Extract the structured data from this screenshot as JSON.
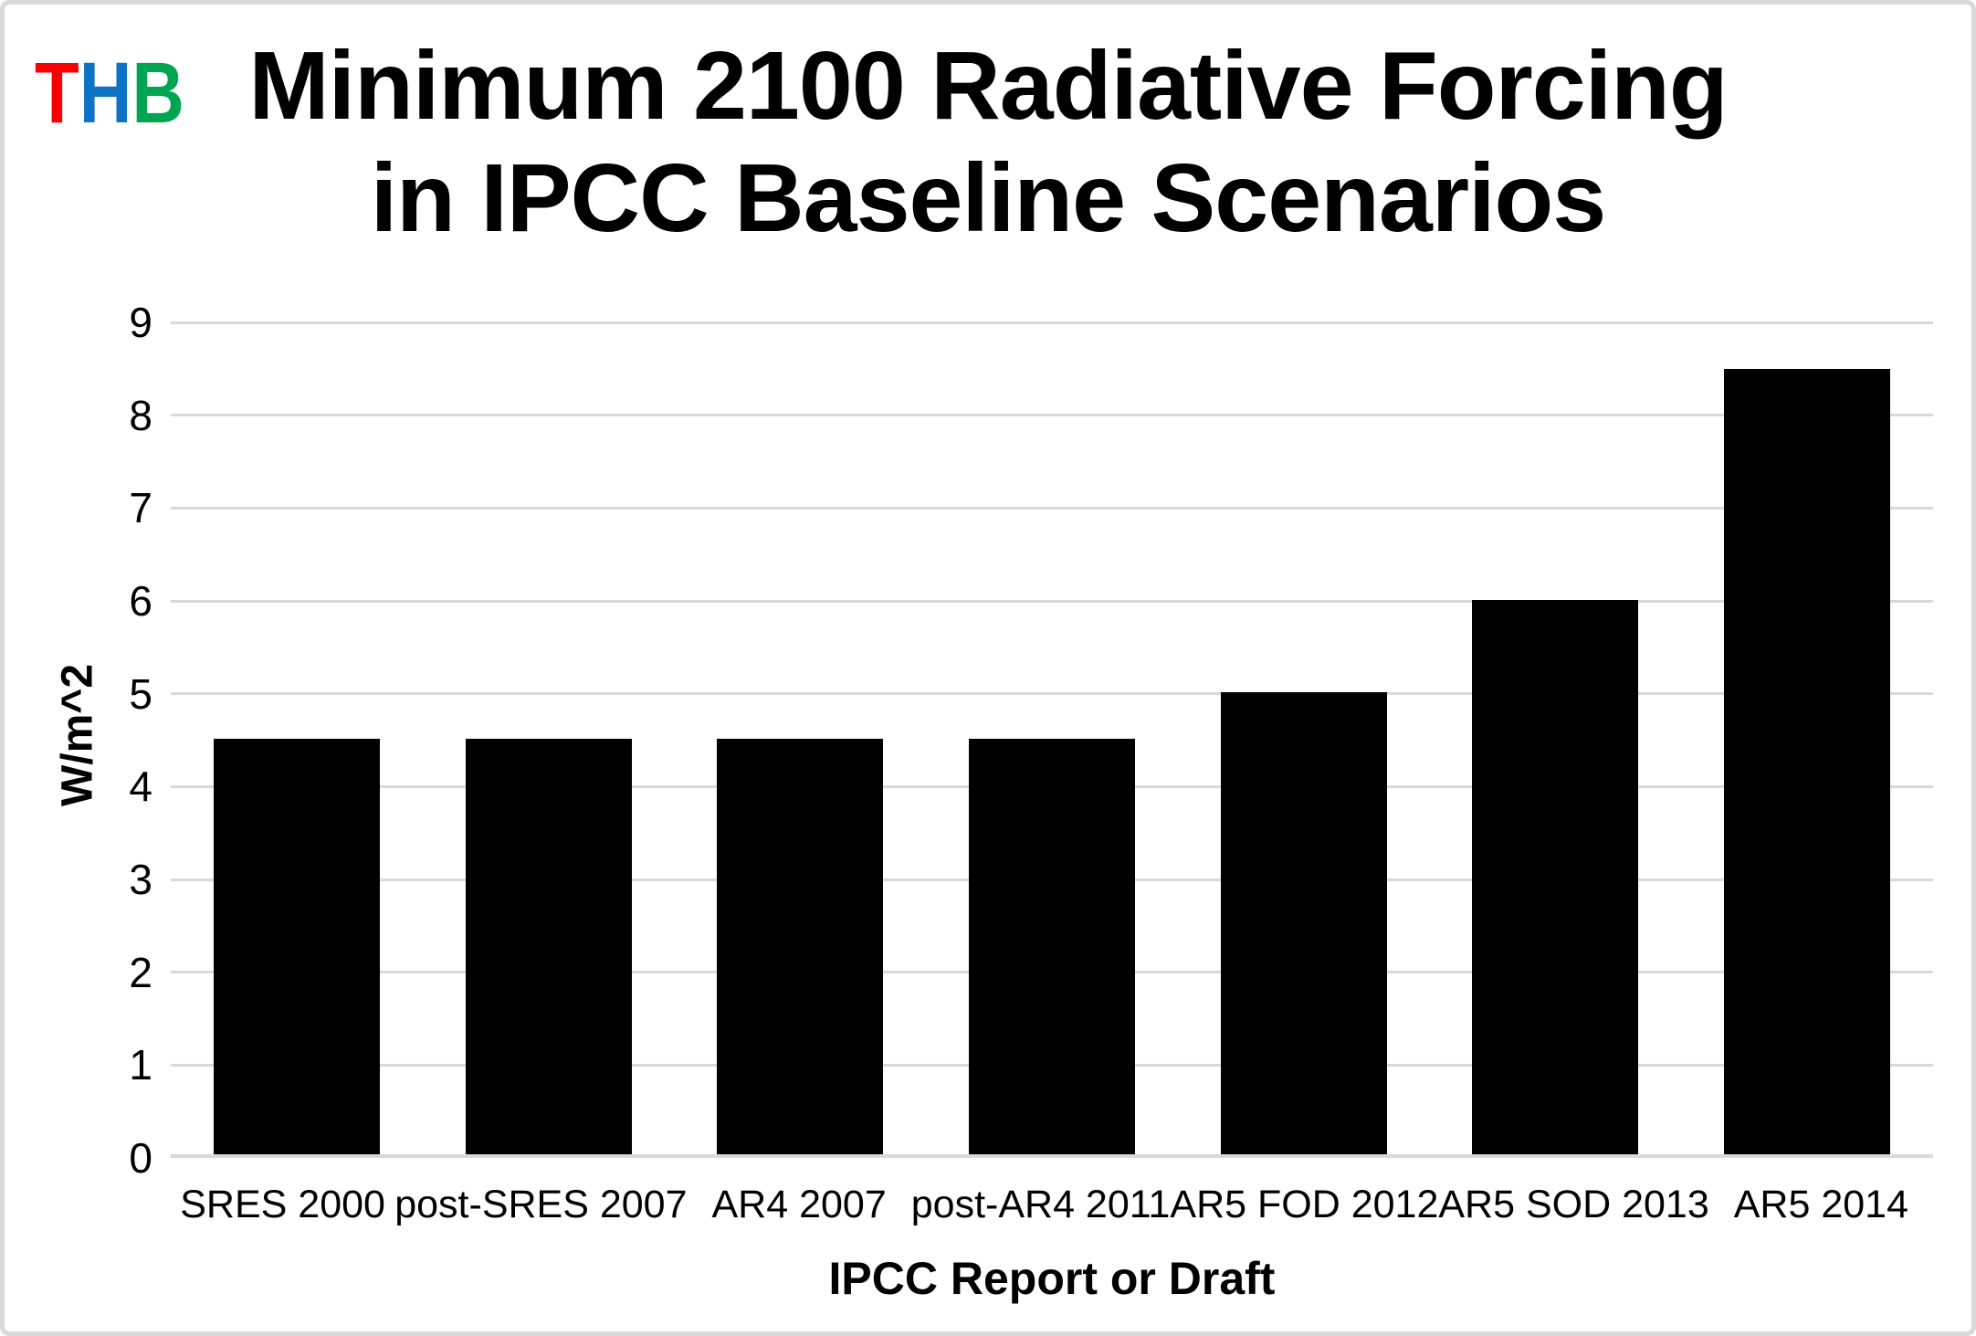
{
  "page": {
    "background": "#ffffff",
    "border_color": "#d9d9d9"
  },
  "logo": {
    "letters": [
      {
        "char": "T",
        "color": "#fb0000"
      },
      {
        "char": "H",
        "color": "#0e72c5"
      },
      {
        "char": "B",
        "color": "#00a551"
      }
    ]
  },
  "title": {
    "line1": "Minimum 2100 Radiative Forcing",
    "line2": "in IPCC Baseline Scenarios"
  },
  "chart_data": {
    "type": "bar",
    "title": "Minimum 2100 Radiative Forcing in IPCC Baseline Scenarios",
    "categories": [
      "SRES 2000",
      "post-SRES 2007",
      "AR4 2007",
      "post-AR4 2011",
      "AR5 FOD 2012",
      "AR5 SOD 2013",
      "AR5 2014"
    ],
    "values": [
      4.5,
      4.5,
      4.5,
      4.5,
      5.0,
      6.0,
      8.5
    ],
    "xlabel": "IPCC Report or Draft",
    "ylabel": "W/m^2",
    "ylim": [
      0,
      9
    ],
    "ytick_step": 1,
    "grid": true,
    "legend_position": "none",
    "bar_color": "#000000",
    "gridline_color": "#d9d9d9",
    "axis_line_color": "#d9d9d9"
  }
}
